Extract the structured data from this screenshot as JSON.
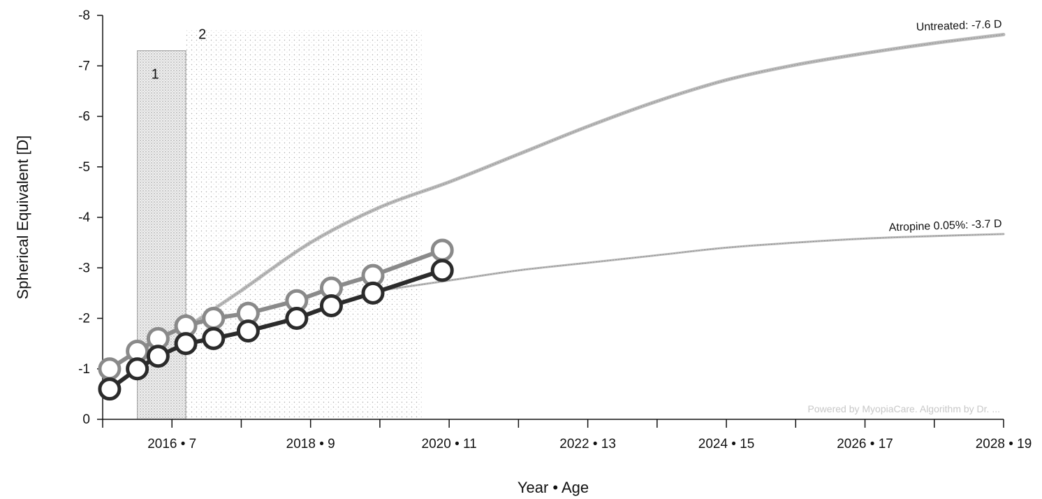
{
  "chart_data": {
    "type": "line",
    "xlabel": "Year • Age",
    "ylabel": "Spherical Equivalent [D]",
    "xlim": [
      2015,
      2028
    ],
    "ylim": [
      0,
      -8
    ],
    "y_ticks": [
      0,
      -1,
      -2,
      -3,
      -4,
      -5,
      -6,
      -7,
      -8
    ],
    "y_tick_labels": [
      "0",
      "-1",
      "-2",
      "-3",
      "-4",
      "-5",
      "-6",
      "-7",
      "-8"
    ],
    "x_major_ticks": [
      2015,
      2017,
      2019,
      2021,
      2023,
      2025,
      2027
    ],
    "x_tick_labels": [
      {
        "x": 2016,
        "label": "2016 • 7"
      },
      {
        "x": 2018,
        "label": "2018 • 9"
      },
      {
        "x": 2020,
        "label": "2020 • 11"
      },
      {
        "x": 2022,
        "label": "2022 • 13"
      },
      {
        "x": 2024,
        "label": "2024 • 15"
      },
      {
        "x": 2026,
        "label": "2026 • 17"
      },
      {
        "x": 2028,
        "label": "2028 • 19"
      }
    ],
    "zones": [
      {
        "label": "1",
        "x": [
          2015.5,
          2016.2
        ],
        "y": [
          0,
          -7.3
        ]
      },
      {
        "label": "2",
        "x": [
          2016.2,
          2019.6
        ],
        "y": [
          0,
          -7.7
        ]
      }
    ],
    "projections": [
      {
        "label": "Untreated: -7.6 D",
        "points": [
          [
            2016.3,
            -1.9
          ],
          [
            2017,
            -2.55
          ],
          [
            2018,
            -3.5
          ],
          [
            2019,
            -4.2
          ],
          [
            2020,
            -4.7
          ],
          [
            2021,
            -5.25
          ],
          [
            2022,
            -5.8
          ],
          [
            2023,
            -6.3
          ],
          [
            2024,
            -6.72
          ],
          [
            2025,
            -7.02
          ],
          [
            2026,
            -7.25
          ],
          [
            2027,
            -7.45
          ],
          [
            2028,
            -7.62
          ]
        ]
      },
      {
        "label": "Atropine 0.05%: -3.7 D",
        "points": [
          [
            2019,
            -2.55
          ],
          [
            2020,
            -2.75
          ],
          [
            2021,
            -2.95
          ],
          [
            2022,
            -3.1
          ],
          [
            2023,
            -3.25
          ],
          [
            2024,
            -3.4
          ],
          [
            2025,
            -3.5
          ],
          [
            2026,
            -3.58
          ],
          [
            2027,
            -3.63
          ],
          [
            2028,
            -3.67
          ]
        ]
      }
    ],
    "series": [
      {
        "x": [
          2015.1,
          2015.5,
          2015.8,
          2016.2,
          2016.6,
          2017.1,
          2017.8,
          2018.3,
          2018.9,
          2019.9
        ],
        "values": [
          -1.0,
          -1.35,
          -1.6,
          -1.85,
          -2.0,
          -2.1,
          -2.35,
          -2.6,
          -2.85,
          -3.35
        ],
        "color": "#8a8a8a"
      },
      {
        "x": [
          2015.1,
          2015.5,
          2015.8,
          2016.2,
          2016.6,
          2017.1,
          2017.8,
          2018.3,
          2018.9,
          2019.9
        ],
        "values": [
          -0.6,
          -1.0,
          -1.25,
          -1.5,
          -1.6,
          -1.75,
          -2.0,
          -2.25,
          -2.5,
          -2.95
        ],
        "color": "#2b2b2b"
      }
    ],
    "watermark": "Powered by MyopiaCare. Algorithm by Dr. ..."
  }
}
